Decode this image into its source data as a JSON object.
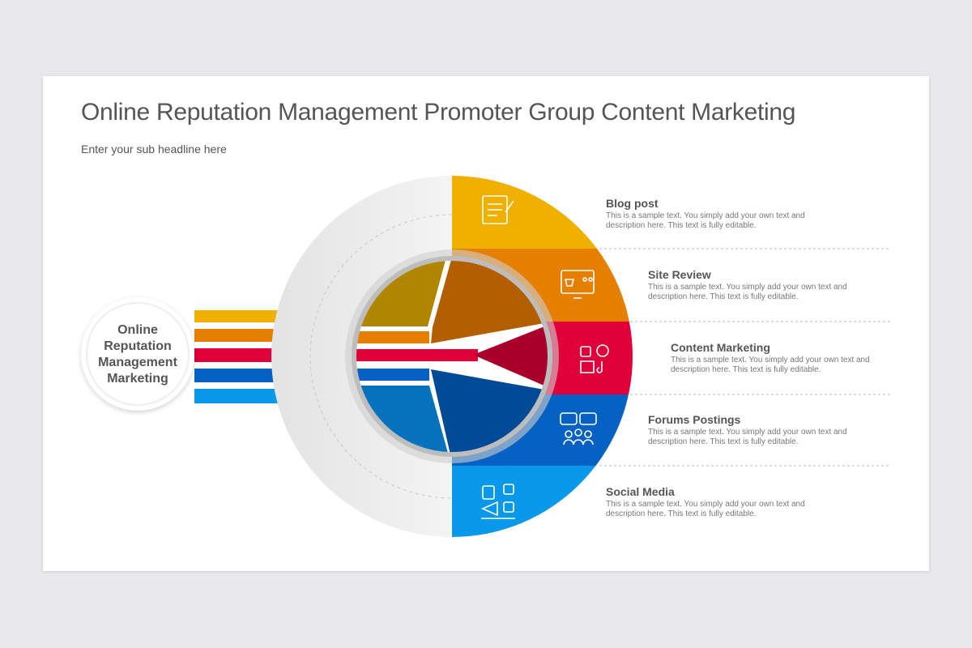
{
  "header": {
    "title": "Online Reputation Management Promoter Group Content Marketing",
    "subtitle": "Enter your sub headline here"
  },
  "center": {
    "label": "Online Reputation Management Marketing"
  },
  "items": [
    {
      "title": "Blog post",
      "description": "This is a sample text. You simply add your own text and description here. This text is fully editable."
    },
    {
      "title": "Site Review",
      "description": "This is a sample text. You simply add your own text and description here. This text is fully editable."
    },
    {
      "title": "Content Marketing",
      "description": "This is a sample text. You simply add your own text and description here. This text is fully editable."
    },
    {
      "title": "Forums Postings",
      "description": "This is a sample text. You simply add your own text and description here. This text is fully editable."
    },
    {
      "title": "Social Media",
      "description": "This is a sample text. You simply add your own text and description here. This text is fully editable."
    }
  ]
}
